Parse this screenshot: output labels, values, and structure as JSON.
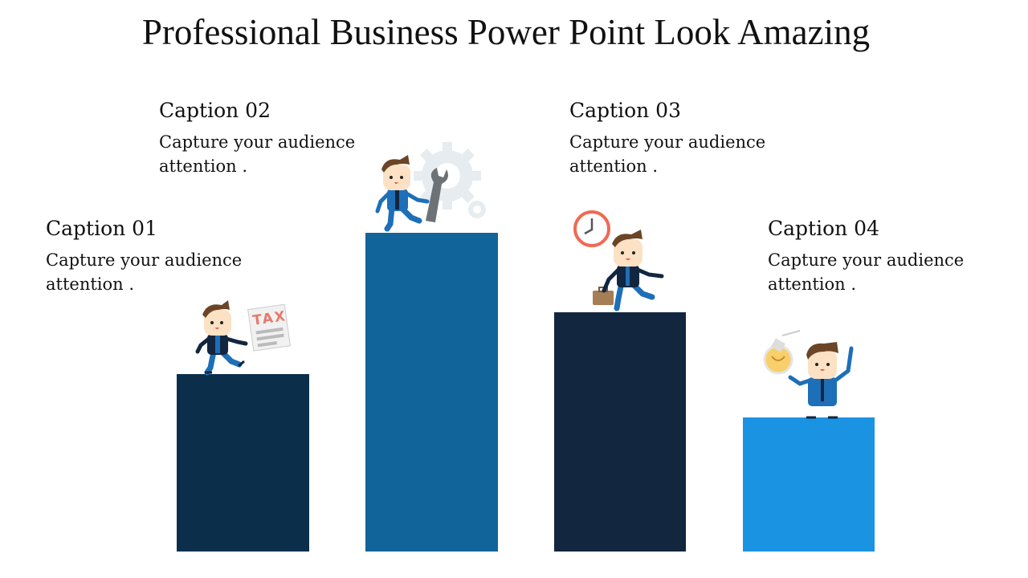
{
  "title": "Professional Business Power Point Look Amazing",
  "steps": [
    {
      "caption": "Caption 01",
      "text": "Capture your audience attention .",
      "bar_color": "#0b2f4b",
      "icon": "tax-document-icon",
      "icon_label": "TAX"
    },
    {
      "caption": "Caption 02",
      "text": "Capture your audience attention .",
      "bar_color": "#11649a",
      "icon": "wrench-gear-icon"
    },
    {
      "caption": "Caption 03",
      "text": "Capture your audience attention .",
      "bar_color": "#12263f",
      "icon": "clock-briefcase-icon"
    },
    {
      "caption": "Caption 04",
      "text": "Capture your audience attention .",
      "bar_color": "#1a93e3",
      "icon": "light-bulb-icon"
    }
  ]
}
